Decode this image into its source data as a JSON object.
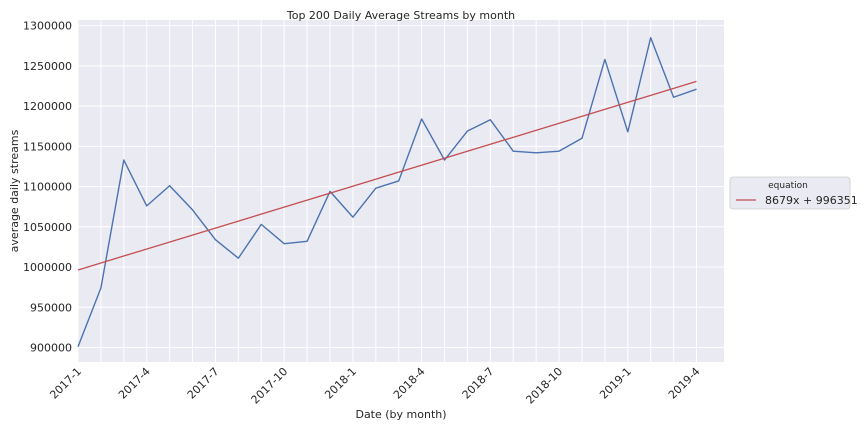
{
  "chart_data": {
    "type": "line",
    "title": "Top 200 Daily Average Streams by month",
    "xlabel": "Date (by month)",
    "ylabel": "average daily streams",
    "x": [
      "2017-1",
      "2017-2",
      "2017-3",
      "2017-4",
      "2017-5",
      "2017-6",
      "2017-7",
      "2017-8",
      "2017-9",
      "2017-10",
      "2017-11",
      "2017-12",
      "2018-1",
      "2018-2",
      "2018-3",
      "2018-4",
      "2018-5",
      "2018-6",
      "2018-7",
      "2018-8",
      "2018-9",
      "2018-10",
      "2018-11",
      "2018-12",
      "2019-1",
      "2019-2",
      "2019-3",
      "2019-4"
    ],
    "x_tick_labels": [
      "2017-1",
      "2017-4",
      "2017-7",
      "2017-10",
      "2018-1",
      "2018-4",
      "2018-7",
      "2018-10",
      "2019-1",
      "2019-4"
    ],
    "x_tick_indices": [
      0,
      3,
      6,
      9,
      12,
      15,
      18,
      21,
      24,
      27
    ],
    "y_ticks": [
      900000,
      950000,
      1000000,
      1050000,
      1100000,
      1150000,
      1200000,
      1250000,
      1300000
    ],
    "y_tick_labels": [
      "900000",
      "950000",
      "1000000",
      "1050000",
      "1100000",
      "1150000",
      "1200000",
      "1250000",
      "1300000"
    ],
    "ylim": [
      882000,
      1307000
    ],
    "xlim": [
      0,
      28.2
    ],
    "grid": true,
    "legend_placement": "right",
    "series": [
      {
        "color": "#4c72b0",
        "values": [
          901000,
          974000,
          1133000,
          1076000,
          1101000,
          1071000,
          1034000,
          1011000,
          1053000,
          1029000,
          1032000,
          1094000,
          1062000,
          1098000,
          1107000,
          1184000,
          1133000,
          1169000,
          1183000,
          1144000,
          1142000,
          1144000,
          1160000,
          1258000,
          1168000,
          1285000,
          1211000,
          1221000
        ]
      },
      {
        "name": "8679x + 996351",
        "color": "#c44e52",
        "trend": {
          "slope": 8679,
          "intercept": 996351
        }
      }
    ],
    "legend": {
      "title": "equation",
      "entries": [
        "8679x + 996351"
      ]
    }
  }
}
